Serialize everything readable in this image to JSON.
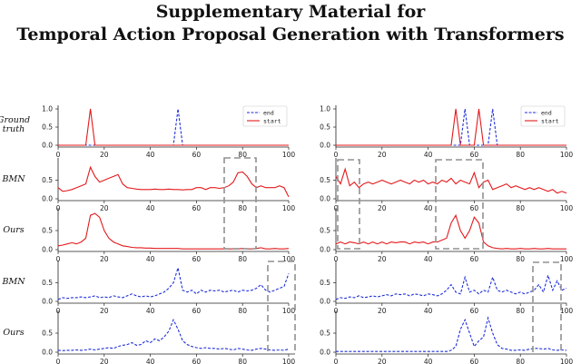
{
  "title": {
    "line1": "Supplementary Material for",
    "line2": "Temporal Action Proposal Generation with Transformers"
  },
  "row_labels": [
    "Ground\ntruth",
    "BMN",
    "Ours",
    "BMN",
    "Ours"
  ],
  "colors": {
    "start": "#e41a1c",
    "end": "#1f2fd8",
    "box": "#909090",
    "axis": "#222222"
  },
  "chart_data": [
    {
      "type": "line",
      "x": [
        0,
        2,
        4,
        6,
        8,
        10,
        12,
        14,
        16,
        18,
        20,
        22,
        24,
        26,
        28,
        30,
        32,
        34,
        36,
        38,
        40,
        42,
        44,
        46,
        48,
        50,
        52,
        54,
        56,
        58,
        60,
        62,
        64,
        66,
        68,
        70,
        72,
        74,
        76,
        78,
        80,
        82,
        84,
        86,
        88,
        90,
        92,
        94,
        96,
        98,
        100
      ],
      "xlim": [
        0,
        100
      ],
      "xticks": [
        0,
        20,
        40,
        60,
        80,
        100
      ],
      "panels": [
        {
          "row": "Ground truth",
          "legend": [
            "end",
            "start"
          ],
          "yticks": [
            0.0,
            0.5,
            1.0
          ],
          "series": [
            {
              "name": "end",
              "style": "dashed",
              "color": "#1f2fd8",
              "values": [
                0,
                0,
                0,
                0,
                0,
                0,
                0,
                0,
                0,
                0,
                0,
                0,
                0,
                0,
                0,
                0,
                0,
                0,
                0,
                0,
                0,
                0,
                0,
                0,
                0,
                0,
                1.0,
                0,
                0,
                0,
                0,
                0,
                0,
                0,
                0,
                0,
                0,
                0,
                0,
                0,
                0,
                0,
                0,
                0,
                0,
                0,
                0,
                0,
                0,
                0,
                0
              ]
            },
            {
              "name": "start",
              "style": "solid",
              "color": "#e41a1c",
              "values": [
                0,
                0,
                0,
                0,
                0,
                0,
                0,
                1.0,
                0,
                0,
                0,
                0,
                0,
                0,
                0,
                0,
                0,
                0,
                0,
                0,
                0,
                0,
                0,
                0,
                0,
                0,
                0,
                0,
                0,
                0,
                0,
                0,
                0,
                0,
                0,
                0,
                0,
                0,
                0,
                0,
                0,
                0,
                0,
                0,
                0,
                0,
                0,
                0,
                0,
                0,
                0
              ]
            }
          ]
        },
        {
          "row": "BMN",
          "yticks": [
            0.0,
            0.5
          ],
          "series": [
            {
              "style": "solid",
              "color": "#e41a1c",
              "values": [
                0.3,
                0.2,
                0.22,
                0.25,
                0.3,
                0.35,
                0.4,
                0.85,
                0.6,
                0.45,
                0.5,
                0.55,
                0.6,
                0.65,
                0.4,
                0.3,
                0.28,
                0.26,
                0.25,
                0.25,
                0.25,
                0.26,
                0.25,
                0.25,
                0.26,
                0.25,
                0.25,
                0.24,
                0.25,
                0.25,
                0.3,
                0.3,
                0.25,
                0.3,
                0.3,
                0.28,
                0.3,
                0.35,
                0.45,
                0.7,
                0.72,
                0.6,
                0.4,
                0.3,
                0.35,
                0.3,
                0.3,
                0.3,
                0.35,
                0.3,
                0.05
              ]
            }
          ]
        },
        {
          "row": "Ours",
          "yticks": [
            0.0,
            0.5
          ],
          "series": [
            {
              "style": "solid",
              "color": "#e41a1c",
              "values": [
                0.1,
                0.12,
                0.15,
                0.18,
                0.15,
                0.2,
                0.3,
                0.9,
                0.95,
                0.85,
                0.5,
                0.3,
                0.2,
                0.15,
                0.1,
                0.08,
                0.06,
                0.05,
                0.05,
                0.04,
                0.04,
                0.03,
                0.03,
                0.03,
                0.03,
                0.03,
                0.03,
                0.02,
                0.02,
                0.02,
                0.02,
                0.02,
                0.02,
                0.02,
                0.02,
                0.02,
                0.02,
                0.02,
                0.02,
                0.02,
                0.03,
                0.02,
                0.02,
                0.03,
                0.05,
                0.02,
                0.02,
                0.03,
                0.02,
                0.02,
                0.03
              ]
            }
          ]
        },
        {
          "row": "BMN",
          "yticks": [
            0.0,
            0.5
          ],
          "series": [
            {
              "style": "dashed",
              "color": "#1f2fd8",
              "values": [
                0.05,
                0.1,
                0.08,
                0.1,
                0.1,
                0.12,
                0.1,
                0.12,
                0.15,
                0.1,
                0.12,
                0.1,
                0.15,
                0.12,
                0.1,
                0.15,
                0.2,
                0.15,
                0.12,
                0.15,
                0.12,
                0.15,
                0.2,
                0.25,
                0.35,
                0.5,
                0.9,
                0.3,
                0.25,
                0.3,
                0.2,
                0.3,
                0.25,
                0.3,
                0.28,
                0.3,
                0.25,
                0.28,
                0.3,
                0.25,
                0.3,
                0.28,
                0.3,
                0.35,
                0.45,
                0.3,
                0.25,
                0.3,
                0.35,
                0.4,
                0.75
              ]
            }
          ]
        },
        {
          "row": "Ours",
          "yticks": [
            0.0,
            0.5
          ],
          "series": [
            {
              "style": "dashed",
              "color": "#1f2fd8",
              "values": [
                0.05,
                0.04,
                0.05,
                0.05,
                0.06,
                0.05,
                0.06,
                0.08,
                0.06,
                0.08,
                0.1,
                0.12,
                0.1,
                0.15,
                0.18,
                0.2,
                0.25,
                0.18,
                0.2,
                0.3,
                0.25,
                0.35,
                0.3,
                0.4,
                0.55,
                0.85,
                0.6,
                0.3,
                0.2,
                0.15,
                0.12,
                0.1,
                0.12,
                0.1,
                0.1,
                0.08,
                0.1,
                0.08,
                0.06,
                0.1,
                0.08,
                0.06,
                0.05,
                0.08,
                0.1,
                0.08,
                0.06,
                0.05,
                0.06,
                0.05,
                0.08
              ]
            }
          ]
        }
      ]
    },
    {
      "type": "line",
      "x": [
        0,
        2,
        4,
        6,
        8,
        10,
        12,
        14,
        16,
        18,
        20,
        22,
        24,
        26,
        28,
        30,
        32,
        34,
        36,
        38,
        40,
        42,
        44,
        46,
        48,
        50,
        52,
        54,
        56,
        58,
        60,
        62,
        64,
        66,
        68,
        70,
        72,
        74,
        76,
        78,
        80,
        82,
        84,
        86,
        88,
        90,
        92,
        94,
        96,
        98,
        100
      ],
      "xlim": [
        0,
        100
      ],
      "xticks": [
        0,
        20,
        40,
        60,
        80,
        100
      ],
      "panels": [
        {
          "row": "Ground truth",
          "legend": [
            "end",
            "start"
          ],
          "yticks": [
            0.0,
            0.5,
            1.0
          ],
          "series": [
            {
              "name": "end",
              "style": "dashed",
              "color": "#1f2fd8",
              "values": [
                0,
                0,
                0,
                0,
                0,
                0,
                0,
                0,
                0,
                0,
                0,
                0,
                0,
                0,
                0,
                0,
                0,
                0,
                0,
                0,
                0,
                0,
                0,
                0,
                0,
                0,
                0,
                0,
                1.0,
                0,
                0,
                0,
                0,
                0,
                1.0,
                0,
                0,
                0,
                0,
                0,
                0,
                0,
                0,
                0,
                0,
                0,
                0,
                0,
                0,
                0,
                0
              ]
            },
            {
              "name": "start",
              "style": "solid",
              "color": "#e41a1c",
              "values": [
                0,
                0,
                0,
                0,
                0,
                0,
                0,
                0,
                0,
                0,
                0,
                0,
                0,
                0,
                0,
                0,
                0,
                0,
                0,
                0,
                0,
                0,
                0,
                0,
                0,
                0,
                1.0,
                0,
                0,
                0,
                0,
                1.0,
                0,
                0,
                0,
                0,
                0,
                0,
                0,
                0,
                0,
                0,
                0,
                0,
                0,
                0,
                0,
                0,
                0,
                0,
                0
              ]
            }
          ]
        },
        {
          "row": "BMN",
          "yticks": [
            0.0,
            0.5
          ],
          "series": [
            {
              "style": "solid",
              "color": "#e41a1c",
              "values": [
                0.6,
                0.4,
                0.8,
                0.35,
                0.45,
                0.3,
                0.4,
                0.45,
                0.4,
                0.45,
                0.5,
                0.45,
                0.4,
                0.45,
                0.5,
                0.45,
                0.4,
                0.5,
                0.45,
                0.5,
                0.4,
                0.45,
                0.4,
                0.5,
                0.45,
                0.55,
                0.4,
                0.5,
                0.45,
                0.4,
                0.7,
                0.3,
                0.45,
                0.5,
                0.25,
                0.3,
                0.35,
                0.4,
                0.3,
                0.35,
                0.3,
                0.25,
                0.3,
                0.25,
                0.3,
                0.25,
                0.2,
                0.25,
                0.15,
                0.2,
                0.15
              ]
            }
          ]
        },
        {
          "row": "Ours",
          "yticks": [
            0.0,
            0.5
          ],
          "series": [
            {
              "style": "solid",
              "color": "#e41a1c",
              "values": [
                0.15,
                0.2,
                0.15,
                0.2,
                0.18,
                0.15,
                0.2,
                0.15,
                0.2,
                0.15,
                0.2,
                0.15,
                0.2,
                0.18,
                0.2,
                0.2,
                0.15,
                0.2,
                0.18,
                0.2,
                0.15,
                0.2,
                0.2,
                0.25,
                0.3,
                0.7,
                0.9,
                0.5,
                0.3,
                0.5,
                0.85,
                0.7,
                0.2,
                0.1,
                0.05,
                0.03,
                0.02,
                0.03,
                0.02,
                0.02,
                0.03,
                0.02,
                0.02,
                0.03,
                0.02,
                0.02,
                0.03,
                0.02,
                0.02,
                0.02,
                0.02
              ]
            }
          ]
        },
        {
          "row": "BMN",
          "yticks": [
            0.0,
            0.5
          ],
          "series": [
            {
              "style": "dashed",
              "color": "#1f2fd8",
              "values": [
                0.05,
                0.1,
                0.08,
                0.12,
                0.1,
                0.15,
                0.1,
                0.12,
                0.15,
                0.12,
                0.15,
                0.18,
                0.15,
                0.2,
                0.18,
                0.2,
                0.15,
                0.2,
                0.18,
                0.15,
                0.2,
                0.18,
                0.15,
                0.2,
                0.3,
                0.45,
                0.25,
                0.2,
                0.65,
                0.25,
                0.3,
                0.2,
                0.3,
                0.25,
                0.65,
                0.3,
                0.25,
                0.3,
                0.25,
                0.2,
                0.25,
                0.2,
                0.25,
                0.3,
                0.45,
                0.25,
                0.7,
                0.3,
                0.55,
                0.3,
                0.35
              ]
            }
          ]
        },
        {
          "row": "Ours",
          "yticks": [
            0.0,
            0.5
          ],
          "series": [
            {
              "style": "dashed",
              "color": "#1f2fd8",
              "values": [
                0.02,
                0.02,
                0.02,
                0.02,
                0.02,
                0.02,
                0.02,
                0.02,
                0.02,
                0.02,
                0.02,
                0.02,
                0.02,
                0.02,
                0.02,
                0.02,
                0.02,
                0.02,
                0.02,
                0.02,
                0.02,
                0.02,
                0.02,
                0.02,
                0.02,
                0.05,
                0.15,
                0.6,
                0.85,
                0.5,
                0.15,
                0.3,
                0.4,
                0.9,
                0.5,
                0.2,
                0.1,
                0.08,
                0.05,
                0.05,
                0.06,
                0.05,
                0.08,
                0.1,
                0.1,
                0.08,
                0.1,
                0.06,
                0.05,
                0.06,
                0.05
              ]
            }
          ]
        }
      ]
    }
  ]
}
